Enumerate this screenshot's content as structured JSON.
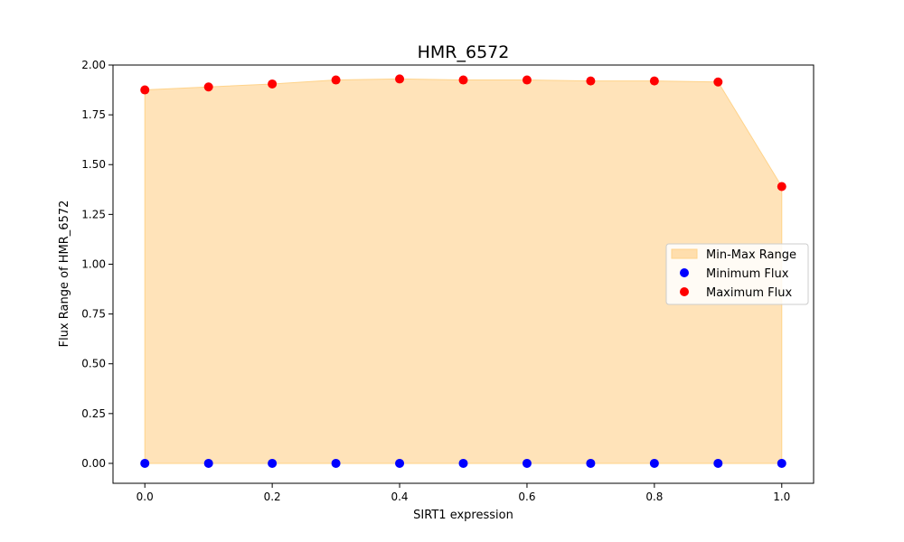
{
  "chart_data": {
    "type": "area",
    "title": "HMR_6572",
    "xlabel": "SIRT1 expression",
    "ylabel": "Flux Range of HMR_6572",
    "xlim": [
      -0.05,
      1.05
    ],
    "ylim": [
      -0.1,
      2.0
    ],
    "xticks": [
      0.0,
      0.2,
      0.4,
      0.6,
      0.8,
      1.0
    ],
    "xtick_labels": [
      "0.0",
      "0.2",
      "0.4",
      "0.6",
      "0.8",
      "1.0"
    ],
    "yticks": [
      0.0,
      0.25,
      0.5,
      0.75,
      1.0,
      1.25,
      1.5,
      1.75,
      2.0
    ],
    "ytick_labels": [
      "0.00",
      "0.25",
      "0.50",
      "0.75",
      "1.00",
      "1.25",
      "1.50",
      "1.75",
      "2.00"
    ],
    "x": [
      0.0,
      0.1,
      0.2,
      0.3,
      0.4,
      0.5,
      0.6,
      0.7,
      0.8,
      0.9,
      1.0
    ],
    "series": [
      {
        "name": "Min-Max Range",
        "kind": "fill_between",
        "color": "#ffdead",
        "lower": [
          0,
          0,
          0,
          0,
          0,
          0,
          0,
          0,
          0,
          0,
          0
        ],
        "upper": [
          1.875,
          1.89,
          1.905,
          1.925,
          1.93,
          1.925,
          1.925,
          1.92,
          1.92,
          1.915,
          1.39
        ]
      },
      {
        "name": "Minimum Flux",
        "kind": "scatter",
        "color": "#0000ff",
        "values": [
          0,
          0,
          0,
          0,
          0,
          0,
          0,
          0,
          0,
          0,
          0
        ]
      },
      {
        "name": "Maximum Flux",
        "kind": "scatter",
        "color": "#ff0000",
        "values": [
          1.875,
          1.89,
          1.905,
          1.925,
          1.93,
          1.925,
          1.925,
          1.92,
          1.92,
          1.915,
          1.39
        ]
      }
    ],
    "grid": false,
    "legend": "center-right"
  }
}
